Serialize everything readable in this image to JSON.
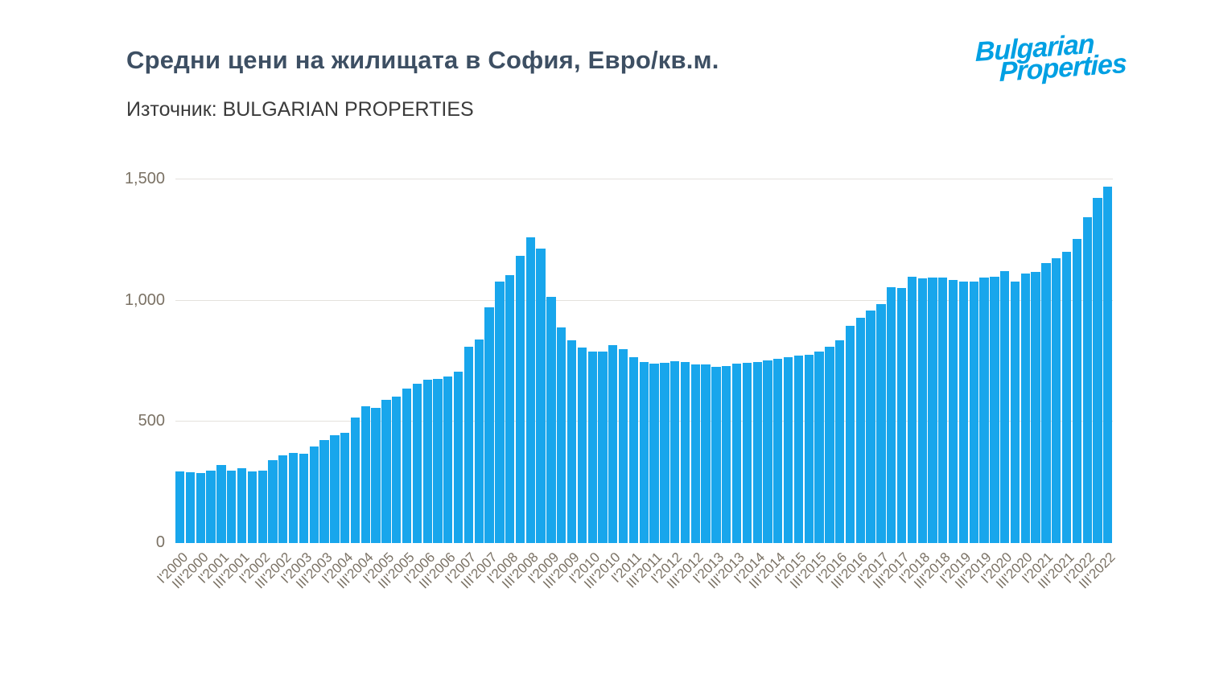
{
  "header": {
    "title": "Средни цени на жилищата в София, Евро/кв.м.",
    "source_label": "Източник: BULGARIAN PROPERTIES"
  },
  "logo": {
    "line1": "Bulgarian",
    "line2": "Properties",
    "color": "#00a0e3"
  },
  "colors": {
    "bar": "#18a6ec",
    "gridline": "#e4e1dd",
    "axis_labels": "#7b7265",
    "title": "#3d4f63",
    "subtitle": "#3b3b3b"
  },
  "chart_data": {
    "type": "bar",
    "title": "Средни цени на жилищата в София, Евро/кв.м.",
    "source": "Източник: BULGARIAN PROPERTIES",
    "unit": "EUR/sq.m",
    "grid": "horizontal",
    "legend": "none",
    "ylim": [
      0,
      1500
    ],
    "y_ticks": [
      0,
      500,
      1000,
      1500
    ],
    "y_tick_labels": [
      "0",
      "500",
      "1,000",
      "1,500"
    ],
    "x_tick_every": 2,
    "x_tick_labels": [
      "I'2000",
      "III'2000",
      "I'2001",
      "III'2001",
      "I'2002",
      "III'2002",
      "I'2003",
      "III'2003",
      "I'2004",
      "III'2004",
      "I'2005",
      "III'2005",
      "I'2006",
      "III'2006",
      "I'2007",
      "III'2007",
      "I'2008",
      "III'2008",
      "I'2009",
      "III'2009",
      "I'2010",
      "III'2010",
      "I'2011",
      "III'2011",
      "I'2012",
      "III'2012",
      "I'2013",
      "III'2013",
      "I'2014",
      "III'2014",
      "I'2015",
      "III'2015",
      "I'2016",
      "III'2016",
      "I'2017",
      "III'2017",
      "I'2018",
      "III'2018",
      "I'2019",
      "III'2019",
      "I'2020",
      "III'2020",
      "I'2021",
      "III'2021",
      "I'2022",
      "III'2022"
    ],
    "categories": [
      "I'2000",
      "II'2000",
      "III'2000",
      "IV'2000",
      "I'2001",
      "II'2001",
      "III'2001",
      "IV'2001",
      "I'2002",
      "II'2002",
      "III'2002",
      "IV'2002",
      "I'2003",
      "II'2003",
      "III'2003",
      "IV'2003",
      "I'2004",
      "II'2004",
      "III'2004",
      "IV'2004",
      "I'2005",
      "II'2005",
      "III'2005",
      "IV'2005",
      "I'2006",
      "II'2006",
      "III'2006",
      "IV'2006",
      "I'2007",
      "II'2007",
      "III'2007",
      "IV'2007",
      "I'2008",
      "II'2008",
      "III'2008",
      "IV'2008",
      "I'2009",
      "II'2009",
      "III'2009",
      "IV'2009",
      "I'2010",
      "II'2010",
      "III'2010",
      "IV'2010",
      "I'2011",
      "II'2011",
      "III'2011",
      "IV'2011",
      "I'2012",
      "II'2012",
      "III'2012",
      "IV'2012",
      "I'2013",
      "II'2013",
      "III'2013",
      "IV'2013",
      "I'2014",
      "II'2014",
      "III'2014",
      "IV'2014",
      "I'2015",
      "II'2015",
      "III'2015",
      "IV'2015",
      "I'2016",
      "II'2016",
      "III'2016",
      "IV'2016",
      "I'2017",
      "II'2017",
      "III'2017",
      "IV'2017",
      "I'2018",
      "II'2018",
      "III'2018",
      "IV'2018",
      "I'2019",
      "II'2019",
      "III'2019",
      "IV'2019",
      "I'2020",
      "II'2020",
      "III'2020",
      "IV'2020",
      "I'2021",
      "II'2021",
      "III'2021",
      "IV'2021",
      "I'2022",
      "II'2022",
      "III'2022"
    ],
    "values": [
      295,
      293,
      289,
      299,
      323,
      299,
      308,
      295,
      299,
      343,
      363,
      371,
      367,
      398,
      426,
      446,
      456,
      517,
      564,
      559,
      592,
      605,
      638,
      656,
      675,
      677,
      686,
      708,
      810,
      841,
      973,
      1078,
      1106,
      1184,
      1261,
      1214,
      1014,
      890,
      835,
      808,
      791,
      789,
      815,
      800,
      765,
      748,
      741,
      743,
      749,
      747,
      738,
      736,
      727,
      731,
      740,
      744,
      747,
      752,
      760,
      767,
      774,
      777,
      791,
      811,
      835,
      897,
      930,
      960,
      987,
      1057,
      1053,
      1098,
      1092,
      1094,
      1096,
      1084,
      1078,
      1080,
      1094,
      1100,
      1123,
      1078,
      1113,
      1120,
      1154,
      1175,
      1200,
      1254,
      1344,
      1424,
      1471
    ]
  }
}
